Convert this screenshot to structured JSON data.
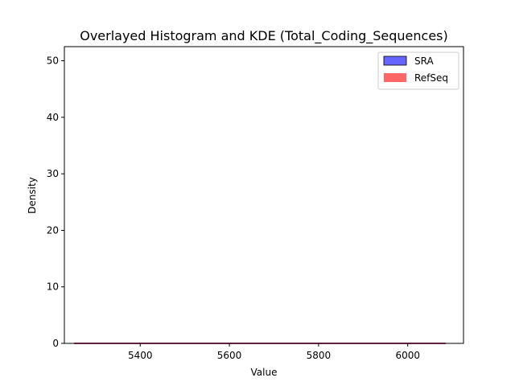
{
  "chart_data": {
    "type": "histogram",
    "title": "Overlayed Histogram and KDE (Total_Coding_Sequences)",
    "xlabel": "Value",
    "ylabel": "Density",
    "xlim": [
      5230,
      6125
    ],
    "ylim": [
      0,
      52.5
    ],
    "xticks": [
      5400,
      5600,
      5800,
      6000
    ],
    "yticks": [
      0,
      10,
      20,
      30,
      40,
      50
    ],
    "grid": false,
    "legend_position": "top-right",
    "series": [
      {
        "name": "SRA",
        "kind": "histogram+kde",
        "color": "#0000ff",
        "fill_opacity": 0.6,
        "x": [
          5252,
          6085
        ],
        "values": [
          0,
          0
        ]
      },
      {
        "name": "RefSeq",
        "kind": "histogram+kde",
        "color": "#ff0000",
        "fill_opacity": 0.6,
        "x": [
          5252,
          6085
        ],
        "values": [
          0,
          0
        ]
      }
    ]
  }
}
